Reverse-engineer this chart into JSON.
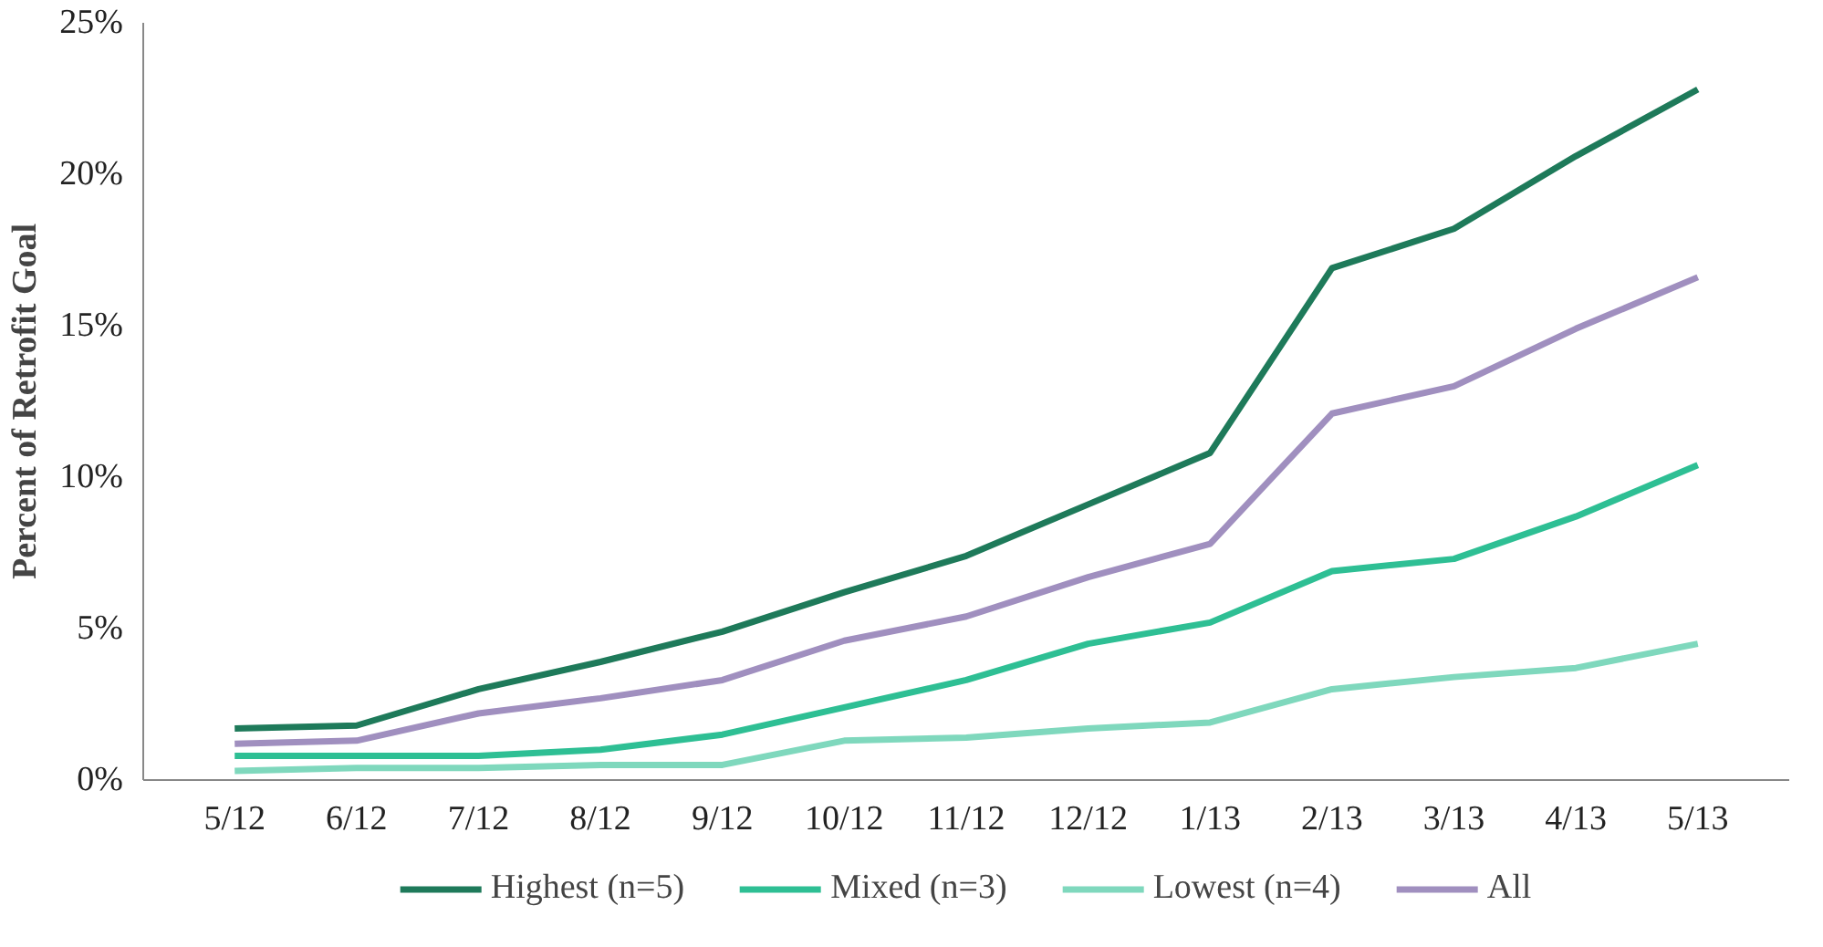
{
  "chart_data": {
    "type": "line",
    "ylabel": "Percent of Retrofit Goal",
    "categories": [
      "5/12",
      "6/12",
      "7/12",
      "8/12",
      "9/12",
      "10/12",
      "11/12",
      "12/12",
      "1/13",
      "2/13",
      "3/13",
      "4/13",
      "5/13"
    ],
    "series": [
      {
        "name": "Highest (n=5)",
        "color": "#1e7a5a",
        "values": [
          1.7,
          1.8,
          3.0,
          3.9,
          4.9,
          6.2,
          7.4,
          9.1,
          10.8,
          16.9,
          18.2,
          20.6,
          22.8
        ]
      },
      {
        "name": "Mixed (n=3)",
        "color": "#2ebf94",
        "values": [
          0.8,
          0.8,
          0.8,
          1.0,
          1.5,
          2.4,
          3.3,
          4.5,
          5.2,
          6.9,
          7.3,
          8.7,
          10.4
        ]
      },
      {
        "name": "Lowest (n=4)",
        "color": "#7fd8bd",
        "values": [
          0.3,
          0.4,
          0.4,
          0.5,
          0.5,
          1.3,
          1.4,
          1.7,
          1.9,
          3.0,
          3.4,
          3.7,
          4.5
        ]
      },
      {
        "name": "All",
        "color": "#a08fbf",
        "values": [
          1.2,
          1.3,
          2.2,
          2.7,
          3.3,
          4.6,
          5.4,
          6.7,
          7.8,
          12.1,
          13.0,
          14.9,
          16.6
        ]
      }
    ],
    "ylim": [
      0,
      25
    ],
    "yticks": [
      {
        "value": 0,
        "label": "0%"
      },
      {
        "value": 5,
        "label": "5%"
      },
      {
        "value": 10,
        "label": "10%"
      },
      {
        "value": 15,
        "label": "15%"
      },
      {
        "value": 20,
        "label": "20%"
      },
      {
        "value": 25,
        "label": "25%"
      }
    ],
    "grid": false,
    "legend": "bottom",
    "marker": "none",
    "line_style": "solid"
  }
}
